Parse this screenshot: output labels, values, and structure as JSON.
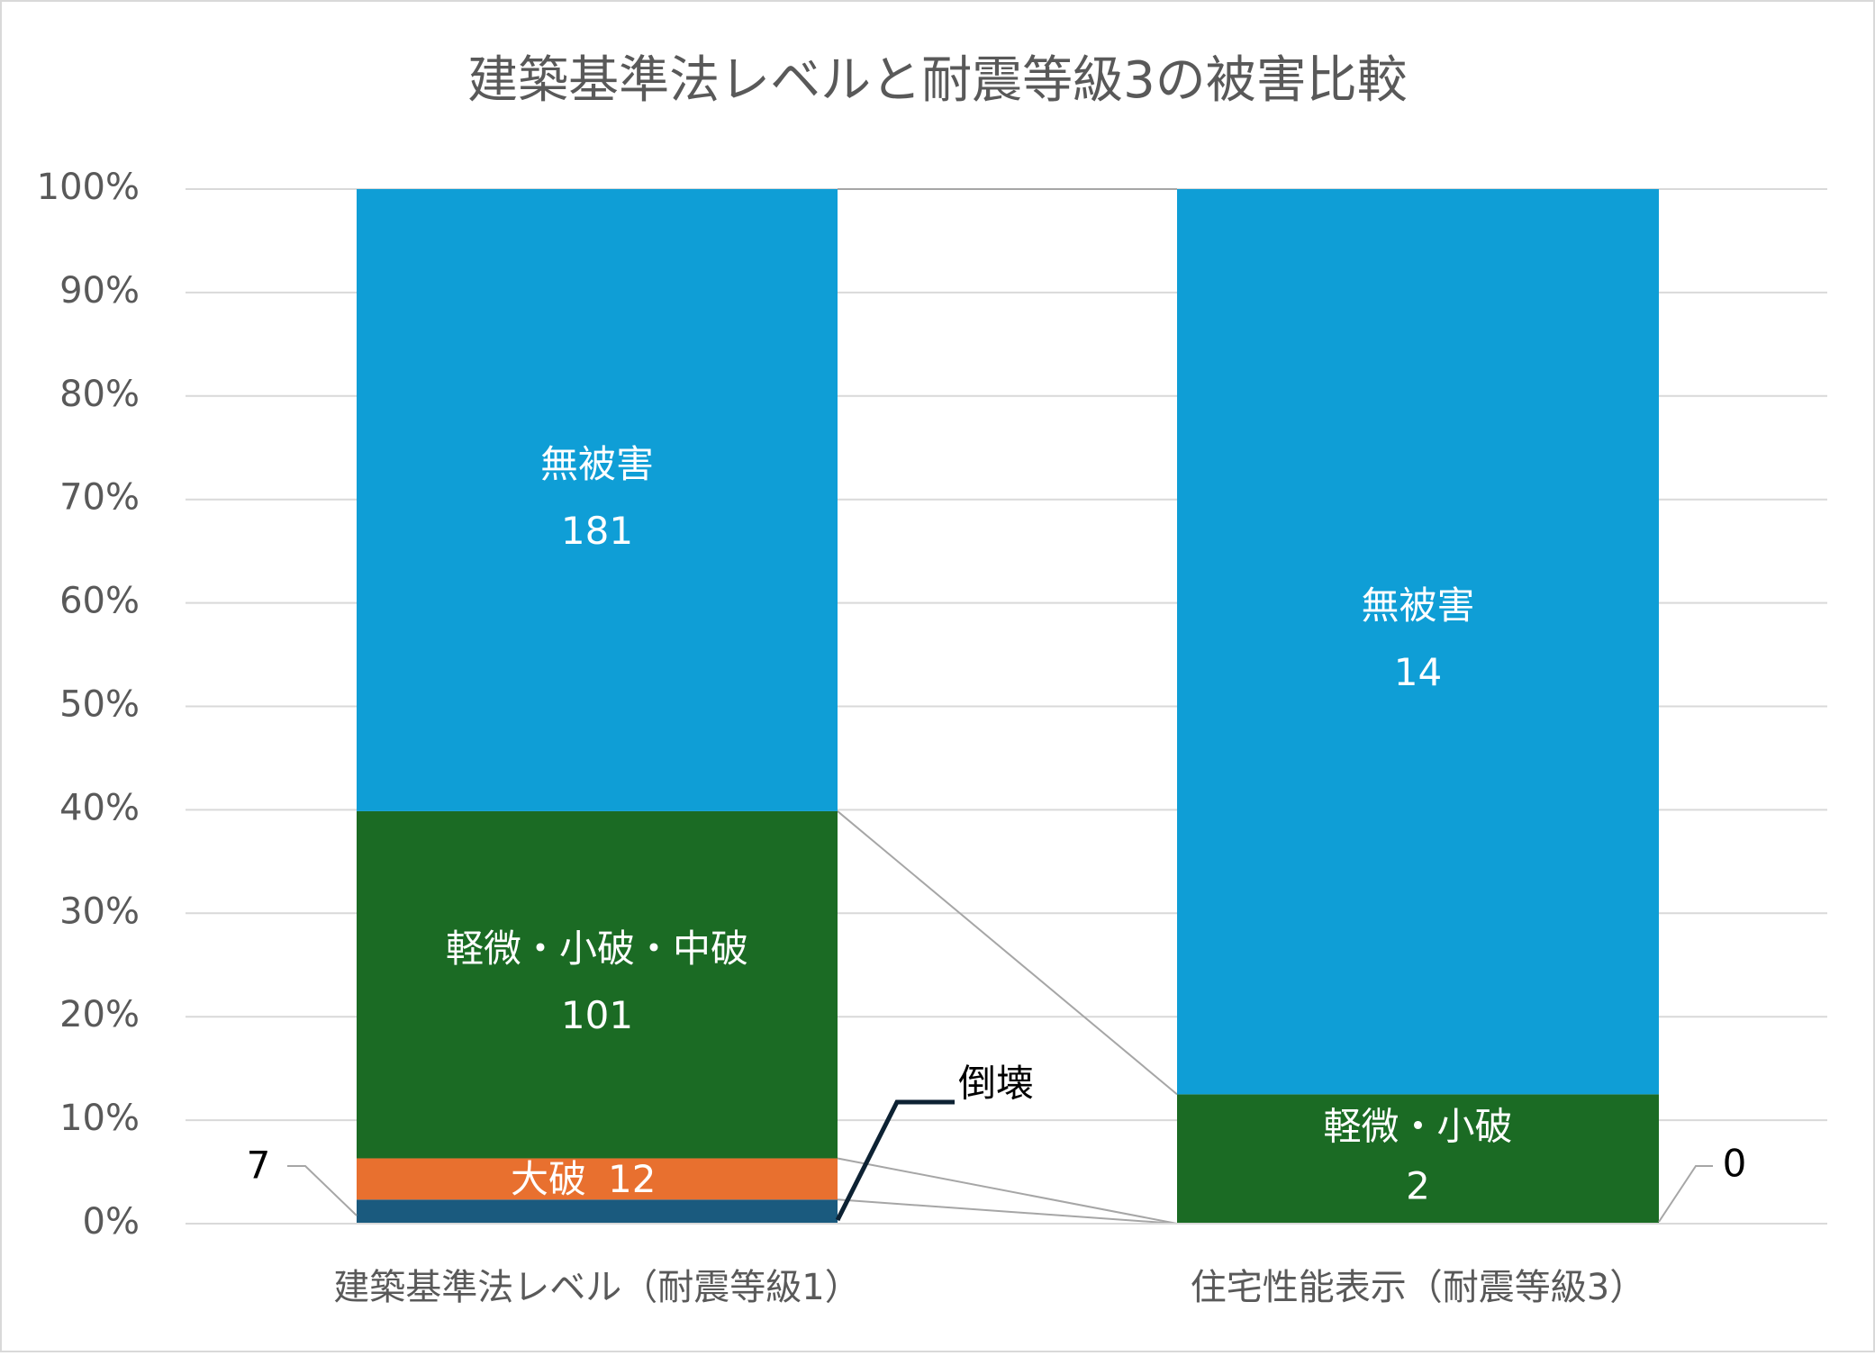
{
  "chart_data": {
    "type": "bar",
    "stacking": "percent",
    "title": "建築基準法レベルと耐震等級3の被害比較",
    "categories": [
      "建築基準法レベル（耐震等級1）",
      "住宅性能表示（耐震等級3）"
    ],
    "series": [
      {
        "name": "倒壊",
        "color": "#1a5a7e",
        "values": [
          7,
          0
        ]
      },
      {
        "name": "大破",
        "color": "#e8702f",
        "values": [
          12,
          0
        ]
      },
      {
        "name": "軽微・小破・中破",
        "color": "#1b6b24",
        "values": [
          101,
          2
        ],
        "segment_names": [
          null,
          "軽微・小破"
        ]
      },
      {
        "name": "無被害",
        "color": "#0f9ed6",
        "values": [
          181,
          14
        ]
      }
    ],
    "ylim": [
      0,
      100
    ],
    "yticks": [
      {
        "value": 0,
        "label": "0%"
      },
      {
        "value": 10,
        "label": "10%"
      },
      {
        "value": 20,
        "label": "20%"
      },
      {
        "value": 30,
        "label": "30%"
      },
      {
        "value": 40,
        "label": "40%"
      },
      {
        "value": 50,
        "label": "50%"
      },
      {
        "value": 60,
        "label": "60%"
      },
      {
        "value": 70,
        "label": "70%"
      },
      {
        "value": 80,
        "label": "80%"
      },
      {
        "value": 90,
        "label": "90%"
      },
      {
        "value": 100,
        "label": "100%"
      }
    ],
    "grid": true
  }
}
